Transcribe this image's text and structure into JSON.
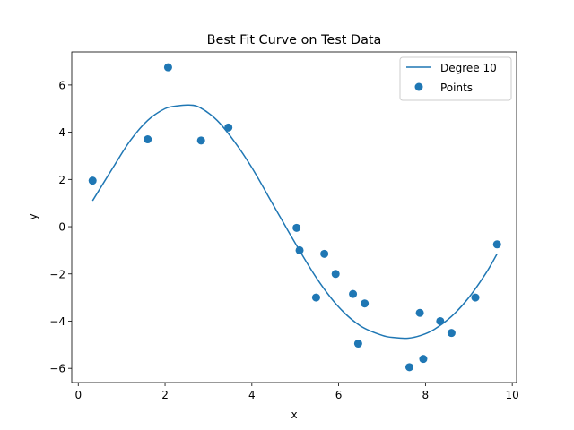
{
  "chart_data": {
    "type": "scatter",
    "title": "Best Fit Curve on Test Data",
    "xlabel": "x",
    "ylabel": "y",
    "xlim": [
      -0.15,
      10.1
    ],
    "ylim": [
      -6.6,
      7.4
    ],
    "xticks": [
      0,
      2,
      4,
      6,
      8,
      10
    ],
    "yticks": [
      -6,
      -4,
      -2,
      0,
      2,
      4,
      6
    ],
    "grid": false,
    "legend_position": "top-right",
    "colors": {
      "series": "#1f77b4",
      "axis": "#000000",
      "legend_border": "#cccccc"
    },
    "series": [
      {
        "name": "Degree 10",
        "kind": "line",
        "x": [
          0.33,
          0.8,
          1.2,
          1.6,
          2.0,
          2.3,
          2.55,
          2.8,
          3.2,
          3.6,
          4.0,
          4.5,
          5.0,
          5.5,
          6.0,
          6.5,
          7.0,
          7.3,
          7.6,
          7.9,
          8.2,
          8.6,
          9.0,
          9.4,
          9.65
        ],
        "y": [
          1.1,
          2.5,
          3.65,
          4.5,
          5.0,
          5.12,
          5.15,
          5.05,
          4.5,
          3.6,
          2.5,
          0.9,
          -0.7,
          -2.2,
          -3.4,
          -4.2,
          -4.6,
          -4.7,
          -4.72,
          -4.6,
          -4.35,
          -3.8,
          -3.0,
          -1.95,
          -1.15
        ]
      },
      {
        "name": "Points",
        "kind": "scatter",
        "x": [
          0.33,
          1.6,
          2.07,
          2.83,
          3.46,
          5.03,
          5.1,
          5.48,
          5.67,
          5.93,
          6.33,
          6.45,
          6.6,
          7.63,
          7.87,
          7.95,
          8.34,
          8.6,
          9.15,
          9.65
        ],
        "y": [
          1.95,
          3.7,
          6.75,
          3.65,
          4.2,
          -0.05,
          -1.0,
          -3.0,
          -1.15,
          -2.0,
          -2.85,
          -4.95,
          -3.25,
          -5.95,
          -3.65,
          -5.6,
          -4.0,
          -4.5,
          -3.0,
          -0.75
        ]
      }
    ]
  }
}
